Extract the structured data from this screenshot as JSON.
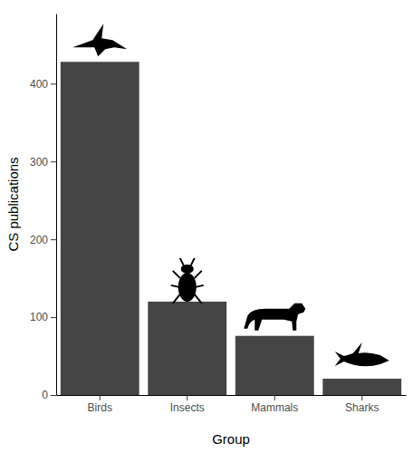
{
  "chart_data": {
    "type": "bar",
    "x_label": "Group",
    "y_label": "CS publications",
    "categories": [
      "Birds",
      "Insects",
      "Mammals",
      "Sharks"
    ],
    "values": [
      428,
      120,
      76,
      21
    ],
    "color": "#454545",
    "ylim": [
      0,
      490
    ],
    "yticks": [
      0,
      100,
      200,
      300,
      400
    ],
    "grid": false
  }
}
